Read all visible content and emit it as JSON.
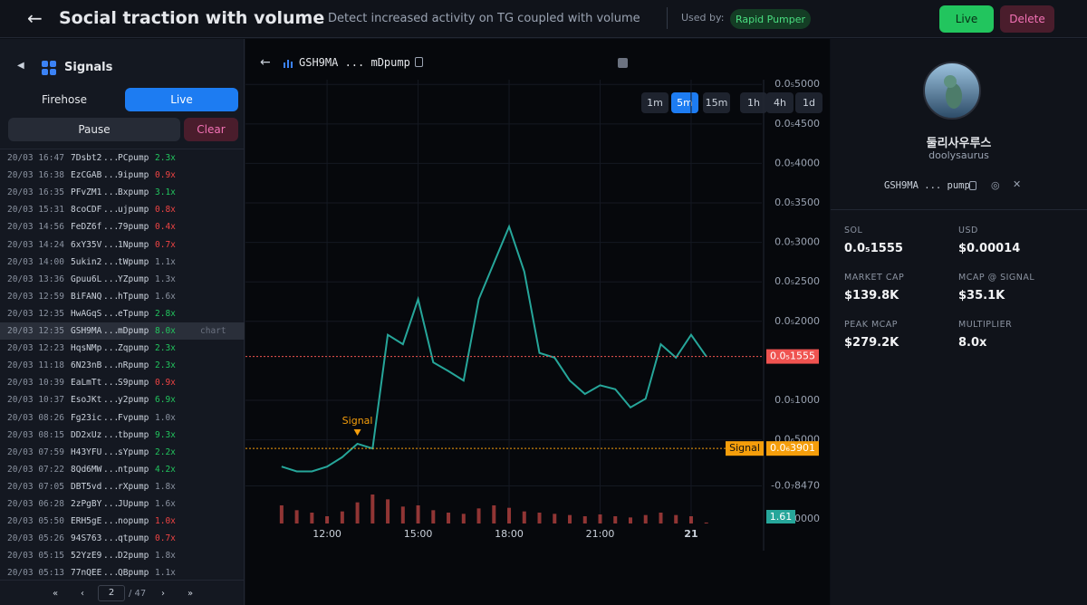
{
  "header": {
    "title": "Social traction with volume",
    "description": "Detect increased activity on TG coupled with volume",
    "used_by_label": "Used by:",
    "used_by": "Rapid Pumper",
    "live": "Live",
    "delete": "Delete"
  },
  "sidebar": {
    "title": "Signals",
    "tabs": [
      "Firehose",
      "Live"
    ],
    "pause": "Pause",
    "clear": "Clear",
    "chart_link": "chart",
    "ellipsis": "...",
    "rows": [
      [
        "20/03 16:47",
        "7Dsbt2",
        "PCpump",
        "2.3x",
        "#22c55e"
      ],
      [
        "20/03 16:38",
        "EzCGAB",
        "9ipump",
        "0.9x",
        "#ef4444"
      ],
      [
        "20/03 16:35",
        "PFvZM1",
        "Bxpump",
        "3.1x",
        "#22c55e"
      ],
      [
        "20/03 15:31",
        "8coCDF",
        "ujpump",
        "0.8x",
        "#ef4444"
      ],
      [
        "20/03 14:56",
        "FeDZ6f",
        "79pump",
        "0.4x",
        "#ef4444"
      ],
      [
        "20/03 14:24",
        "6xY35V",
        "1Npump",
        "0.7x",
        "#ef4444"
      ],
      [
        "20/03 14:00",
        "5ukin2",
        "tWpump",
        "1.1x",
        "#8b93a1"
      ],
      [
        "20/03 13:36",
        "Gpuu6L",
        "YZpump",
        "1.3x",
        "#8b93a1"
      ],
      [
        "20/03 12:59",
        "BiFANQ",
        "hTpump",
        "1.6x",
        "#8b93a1"
      ],
      [
        "20/03 12:35",
        "HwAGqS",
        "eTpump",
        "2.8x",
        "#22c55e"
      ],
      [
        "20/03 12:35",
        "GSH9MA",
        "mDpump",
        "8.0x",
        "#22c55e"
      ],
      [
        "20/03 12:23",
        "HqsNMp",
        "Zqpump",
        "2.3x",
        "#22c55e"
      ],
      [
        "20/03 11:18",
        "6N23nB",
        "nRpump",
        "2.3x",
        "#22c55e"
      ],
      [
        "20/03 10:39",
        "EaLmTt",
        "S9pump",
        "0.9x",
        "#ef4444"
      ],
      [
        "20/03 10:37",
        "EsoJKt",
        "y2pump",
        "6.9x",
        "#22c55e"
      ],
      [
        "20/03 08:26",
        "Fg23ic",
        "Fvpump",
        "1.0x",
        "#8b93a1"
      ],
      [
        "20/03 08:15",
        "DD2xUz",
        "tbpump",
        "9.3x",
        "#22c55e"
      ],
      [
        "20/03 07:59",
        "H43YFU",
        "sYpump",
        "2.2x",
        "#22c55e"
      ],
      [
        "20/03 07:22",
        "8Qd6MW",
        "ntpump",
        "4.2x",
        "#22c55e"
      ],
      [
        "20/03 07:05",
        "DBT5vd",
        "rXpump",
        "1.8x",
        "#8b93a1"
      ],
      [
        "20/03 06:28",
        "2zPgBY",
        "JUpump",
        "1.6x",
        "#8b93a1"
      ],
      [
        "20/03 05:50",
        "ERH5gE",
        "nopump",
        "1.0x",
        "#ef4444"
      ],
      [
        "20/03 05:26",
        "94S763",
        "qtpump",
        "0.7x",
        "#ef4444"
      ],
      [
        "20/03 05:15",
        "52YzE9",
        "D2pump",
        "1.8x",
        "#8b93a1"
      ],
      [
        "20/03 05:13",
        "77nQEE",
        "QBpump",
        "1.1x",
        "#8b93a1"
      ]
    ],
    "selected_row": 10,
    "pagination": {
      "first": "«",
      "prev": "‹",
      "page": "2",
      "total": "/ 47",
      "next": "›",
      "last": "»"
    }
  },
  "toolbar": {
    "token": "GSH9MA ... mDpump",
    "intervals": [
      "1m",
      "5m",
      "15m",
      "1h",
      "4h",
      "1d"
    ],
    "active_interval": 1
  },
  "chart_data": {
    "type": "line",
    "color": "#26a69a",
    "x": [
      10.5,
      11,
      11.5,
      12,
      12.5,
      13,
      13.5,
      14,
      14.5,
      15,
      15.5,
      16,
      16.5,
      17,
      17.5,
      18,
      18.5,
      19,
      19.5,
      20,
      20.5,
      21,
      21.5,
      22,
      22.5,
      23,
      23.5,
      24,
      24.5
    ],
    "values": [
      1.6e-07,
      1e-07,
      1e-07,
      1.6e-07,
      2.8e-07,
      4.5e-07,
      3.9e-07,
      1.83e-06,
      1.71e-06,
      2.28e-06,
      1.48e-06,
      1.37e-06,
      1.25e-06,
      2.28e-06,
      2.74e-06,
      3.2e-06,
      2.63e-06,
      1.6e-06,
      1.54e-06,
      1.25e-06,
      1.08e-06,
      1.19e-06,
      1.14e-06,
      9.1e-07,
      1.02e-06,
      1.71e-06,
      1.54e-06,
      1.83e-06,
      1.555e-06
    ],
    "volume": [
      30,
      22,
      18,
      12,
      20,
      35,
      48,
      40,
      28,
      30,
      22,
      18,
      16,
      25,
      30,
      26,
      20,
      18,
      16,
      14,
      12,
      15,
      12,
      10,
      14,
      18,
      14,
      12,
      1.61
    ],
    "volume_color": "#ef5350",
    "volume_ylim": [
      0,
      60
    ],
    "volume_label": "1.61",
    "volume_axis_label": "0000",
    "xlim": [
      9.31,
      26.33
    ],
    "ylim": [
      -5.6e-07,
      5.06e-06
    ],
    "xticks": [
      {
        "value": 12,
        "label": "12:00"
      },
      {
        "value": 15,
        "label": "15:00"
      },
      {
        "value": 18,
        "label": "18:00"
      },
      {
        "value": 21,
        "label": "21:00"
      },
      {
        "value": 24,
        "label": "21"
      }
    ],
    "yticks": [
      {
        "value": 5e-06,
        "label": "0.0₅5000"
      },
      {
        "value": 4.5e-06,
        "label": "0.0₅4500"
      },
      {
        "value": 4e-06,
        "label": "0.0₅4000"
      },
      {
        "value": 3.5e-06,
        "label": "0.0₅3500"
      },
      {
        "value": 3e-06,
        "label": "0.0₅3000"
      },
      {
        "value": 2.5e-06,
        "label": "0.0₅2500"
      },
      {
        "value": 2e-06,
        "label": "0.0₅2000"
      },
      {
        "value": 1e-06,
        "label": "0.0₅1000"
      },
      {
        "value": 5e-07,
        "label": "0.0₆5000"
      },
      {
        "value": -8.47e-08,
        "label": "-0.0₇8470"
      }
    ],
    "price_line": {
      "value": 1.555e-06,
      "label": "0.0₅1555",
      "color": "#ef5350"
    },
    "signal_line": {
      "value": 3.901e-07,
      "label": "0.0₆3901",
      "name": "Signal",
      "color": "#f59e0b"
    },
    "signal_marker": {
      "x": 13,
      "label": "Signal"
    },
    "grid": true
  },
  "profile": {
    "name": "둘리사우루스",
    "handle": "doolysaurus",
    "address": "GSH9MA ... pump",
    "stats": [
      [
        "SOL",
        "0.0₅1555"
      ],
      [
        "USD",
        "$0.00014"
      ],
      [
        "MARKET CAP",
        "$139.8K"
      ],
      [
        "MCAP @ SIGNAL",
        "$35.1K"
      ],
      [
        "PEAK MCAP",
        "$279.2K"
      ],
      [
        "MULTIPLIER",
        "8.0x"
      ]
    ]
  }
}
